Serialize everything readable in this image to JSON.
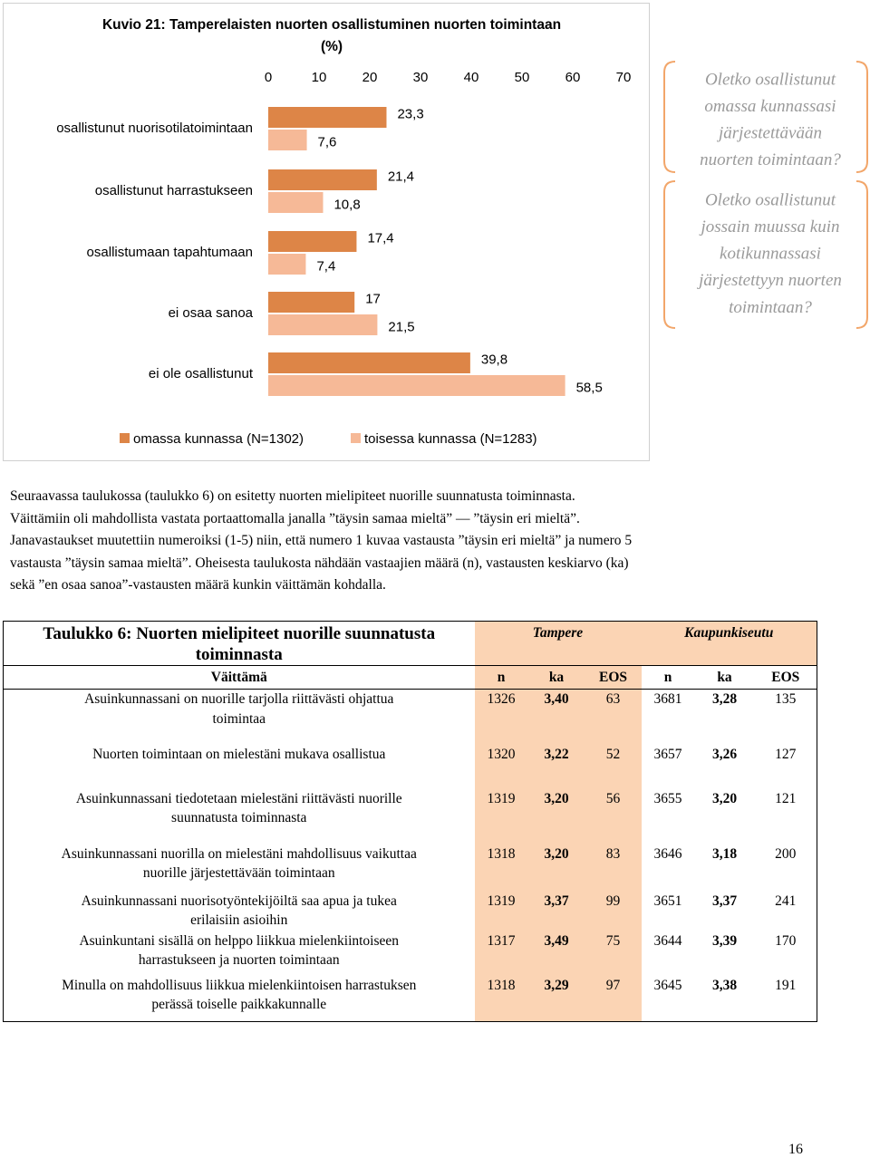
{
  "chart_data": {
    "type": "bar",
    "title": [
      "Kuvio 21: Tamperelaisten nuorten osallistuminen nuorten toimintaan",
      "(%)"
    ],
    "categories": [
      "osallistunut nuorisotilatoimintaan",
      "osallistunut harrastukseen",
      "osallistumaan tapahtumaan",
      "ei osaa sanoa",
      "ei ole osallistunut"
    ],
    "series": [
      {
        "name": "omassa kunnassa (N=1302)",
        "color": "#dd8547",
        "values": [
          23.3,
          21.4,
          17.4,
          17,
          39.8
        ],
        "value_labels": [
          "23,3",
          "21,4",
          "17,4",
          "17",
          "39,8"
        ]
      },
      {
        "name": "toisessa kunnassa (N=1283)",
        "color": "#f6b997",
        "values": [
          7.6,
          10.8,
          7.4,
          21.5,
          58.5
        ],
        "value_labels": [
          "7,6",
          "10,8",
          "7,4",
          "21,5",
          "58,5"
        ]
      }
    ],
    "xlim": [
      0,
      70
    ],
    "xticks": [
      0,
      10,
      20,
      30,
      40,
      50,
      60,
      70
    ],
    "annotations": [
      [
        "Oletko osallistunut",
        "omassa kunnassasi",
        "järjestettävään",
        "nuorten toimintaan?"
      ],
      [
        "Oletko osallistunut",
        "jossain muussa kuin",
        "kotikunnassasi",
        "järjestettyyn nuorten",
        "toimintaan?"
      ]
    ]
  },
  "paragraph": [
    "Seuraavassa taulukossa (taulukko 6) on esitetty nuorten mielipiteet nuorille suunnatusta toiminnasta.",
    "Väittämiin oli mahdollista vastata portaattomalla janalla ”täysin samaa mieltä” — ”täysin eri mieltä”.",
    "Janavastaukset muutettiin numeroiksi (1-5) niin, että numero 1 kuvaa vastausta ”täysin eri mieltä” ja numero 5",
    "vastausta ”täysin samaa mieltä”. Oheisesta taulukosta nähdään vastaajien määrä (n), vastausten keskiarvo (ka)",
    "sekä ”en osaa sanoa”-vastausten määrä kunkin väittämän kohdalla."
  ],
  "table": {
    "title": [
      "Taulukko 6: Nuorten mielipiteet nuorille suunnatusta",
      "toiminnasta"
    ],
    "groups": [
      "Tampere",
      "Kaupunkiseutu"
    ],
    "columns": [
      "Väittämä",
      "n",
      "ka",
      "EOS",
      "n",
      "ka",
      "EOS"
    ],
    "rows": [
      {
        "statement": [
          "Asuinkunnassani on nuorille tarjolla riittävästi ohjattua",
          "toimintaa"
        ],
        "values": [
          1326,
          "3,40",
          63,
          3681,
          "3,28",
          135
        ]
      },
      {
        "statement": [
          "Nuorten toimintaan on mielestäni mukava osallistua"
        ],
        "values": [
          1320,
          "3,22",
          52,
          3657,
          "3,26",
          127
        ]
      },
      {
        "statement": [
          "Asuinkunnassani tiedotetaan mielestäni riittävästi nuorille",
          "suunnatusta toiminnasta"
        ],
        "values": [
          1319,
          "3,20",
          56,
          3655,
          "3,20",
          121
        ]
      },
      {
        "statement": [
          "Asuinkunnassani nuorilla on mielestäni mahdollisuus vaikuttaa",
          "nuorille järjestettävään toimintaan"
        ],
        "values": [
          1318,
          "3,20",
          83,
          3646,
          "3,18",
          200
        ]
      },
      {
        "statement": [
          "Asuinkunnassani nuorisotyöntekijöiltä saa apua ja tukea",
          "erilaisiin asioihin"
        ],
        "values": [
          1319,
          "3,37",
          99,
          3651,
          "3,37",
          241
        ]
      },
      {
        "statement": [
          "Asuinkuntani sisällä on helppo liikkua mielenkiintoiseen",
          "harrastukseen ja nuorten toimintaan"
        ],
        "values": [
          1317,
          "3,49",
          75,
          3644,
          "3,39",
          170
        ]
      },
      {
        "statement": [
          "Minulla on mahdollisuus liikkua mielenkiintoisen harrastuksen",
          "perässä toiselle paikkakunnalle"
        ],
        "values": [
          1318,
          "3,29",
          97,
          3645,
          "3,38",
          191
        ]
      }
    ]
  },
  "page_number": "16"
}
